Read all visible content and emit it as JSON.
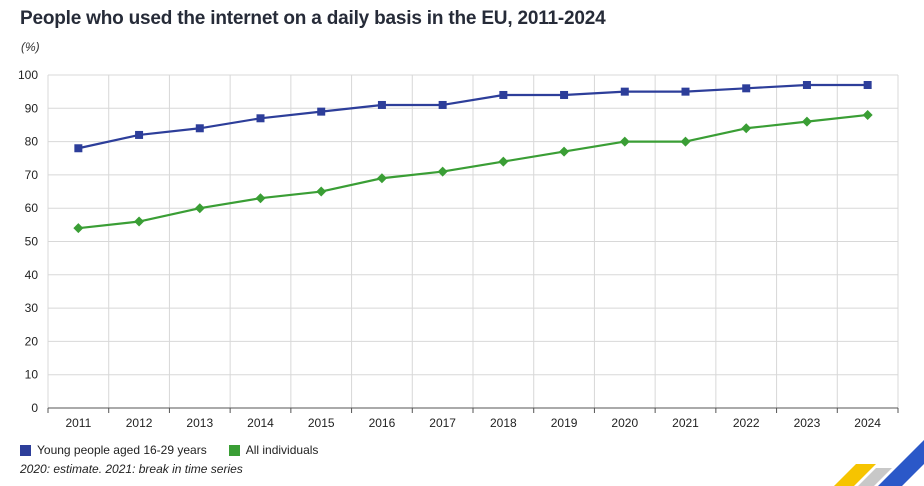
{
  "chart_data": {
    "type": "line",
    "title": "People who used the internet on a daily basis in the EU, 2011-2024",
    "ylabel": "(%)",
    "xlabel": "",
    "ylim": [
      0,
      100
    ],
    "yticks": [
      0,
      10,
      20,
      30,
      40,
      50,
      60,
      70,
      80,
      90,
      100
    ],
    "categories": [
      "2011",
      "2012",
      "2013",
      "2014",
      "2015",
      "2016",
      "2017",
      "2018",
      "2019",
      "2020",
      "2021",
      "2022",
      "2023",
      "2024"
    ],
    "series": [
      {
        "name": "Young people aged 16-29 years",
        "color": "#2d3e9a",
        "marker": "square",
        "values": [
          78,
          82,
          84,
          87,
          89,
          91,
          91,
          94,
          94,
          95,
          95,
          96,
          97,
          97
        ]
      },
      {
        "name": "All individuals",
        "color": "#3a9e35",
        "marker": "diamond",
        "values": [
          54,
          56,
          60,
          63,
          65,
          69,
          71,
          74,
          77,
          80,
          80,
          84,
          86,
          88
        ]
      }
    ],
    "grid": true,
    "legend": "bottom-left"
  },
  "footnote": "2020: estimate. 2021: break in time series",
  "colors": {
    "grid": "#d8d8d8",
    "axis": "#555555",
    "logo_blue": "#2b58c8",
    "logo_yellow": "#f6c400"
  }
}
